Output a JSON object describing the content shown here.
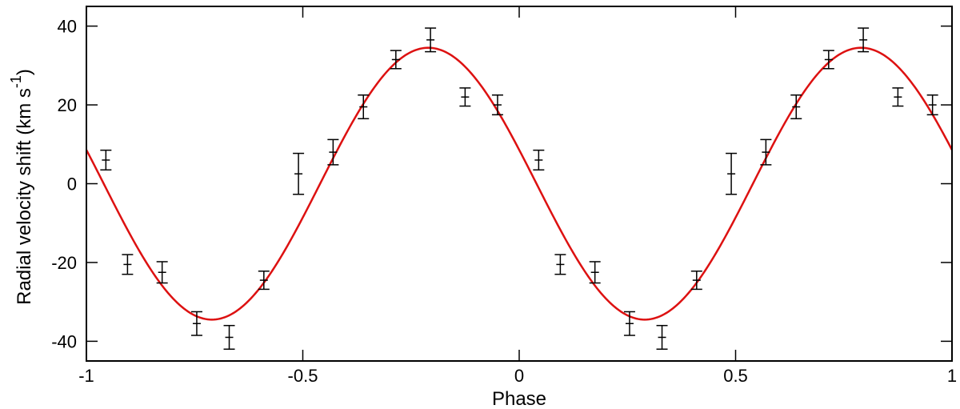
{
  "chart_data": {
    "type": "scatter",
    "title": "",
    "xlabel": "Phase",
    "ylabel": "Radial velocity shift (km s",
    "ylabel_superscript": "-1",
    "ylabel_close": ")",
    "xlim": [
      -1,
      1
    ],
    "ylim": [
      -45,
      45
    ],
    "xticks": [
      -1,
      -0.5,
      0,
      0.5,
      1
    ],
    "xtick_labels": [
      "-1",
      "-0.5",
      "0",
      "0.5",
      "1"
    ],
    "yticks": [
      -40,
      -20,
      0,
      20,
      40
    ],
    "ytick_labels": [
      "-40",
      "-20",
      "0",
      "20",
      "40"
    ],
    "grid": false,
    "legend": "none",
    "series": [
      {
        "kind": "points-with-errorbars",
        "color": "#000000",
        "x": [
          -0.955,
          -0.905,
          -0.825,
          -0.745,
          -0.67,
          -0.59,
          -0.51,
          -0.43,
          -0.36,
          -0.285,
          -0.205,
          -0.125,
          -0.05,
          0.045,
          0.095,
          0.175,
          0.255,
          0.33,
          0.41,
          0.49,
          0.57,
          0.64,
          0.715,
          0.795,
          0.875,
          0.955
        ],
        "y": [
          6,
          -20.5,
          -22.5,
          -35.5,
          -39,
          -24.5,
          2.5,
          8,
          19.5,
          31.5,
          36.5,
          22,
          20,
          6,
          -20.5,
          -22.5,
          -35.5,
          -39,
          -24.5,
          2.5,
          8,
          19.5,
          31.5,
          36.5,
          22,
          20
        ],
        "yerr": [
          2.5,
          2.5,
          2.7,
          3,
          3,
          2.3,
          5.2,
          3.2,
          3,
          2.3,
          3,
          2.3,
          2.5,
          2.5,
          2.5,
          2.7,
          3,
          3,
          2.3,
          5.2,
          3.2,
          3,
          2.3,
          3,
          2.3,
          2.5
        ]
      },
      {
        "kind": "sinusoid-fit",
        "color": "#dd1111",
        "amplitude": 34.5,
        "period": 1.0,
        "phase_of_maximum": -0.21,
        "offset": 0
      }
    ]
  }
}
